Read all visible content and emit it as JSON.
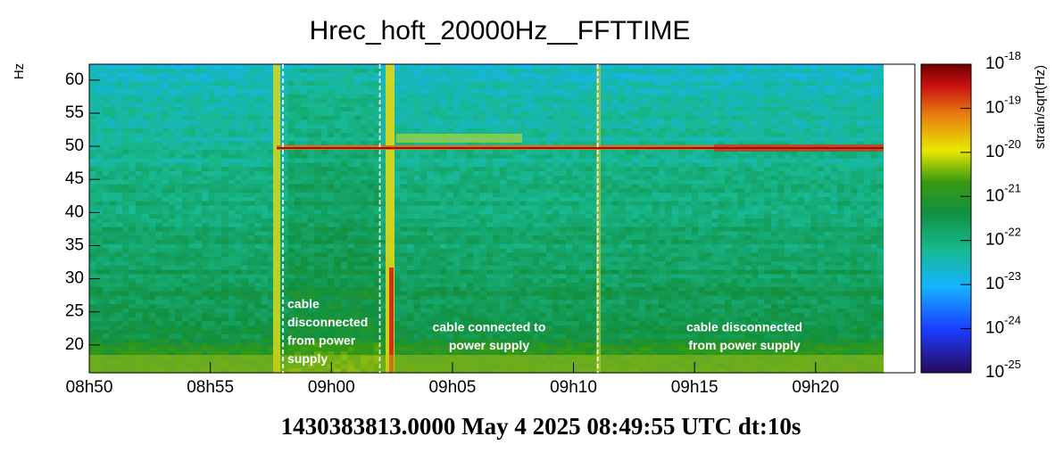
{
  "chart_data": {
    "type": "spectrogram",
    "title": "Hrec_hoft_20000Hz__FFTTIME",
    "subtitle": "1430383813.0000 May 4 2025 08:49:55 UTC dt:10s",
    "y_label": "Hz",
    "colorbar_label": "strain/sqrt(Hz)",
    "xlim": [
      530,
      564.1
    ],
    "ylim": [
      15.8,
      62.4
    ],
    "xticks": [
      {
        "value": 530,
        "label": "08h50"
      },
      {
        "value": 535,
        "label": "08h55"
      },
      {
        "value": 540,
        "label": "09h00"
      },
      {
        "value": 545,
        "label": "09h05"
      },
      {
        "value": 550,
        "label": "09h10"
      },
      {
        "value": 555,
        "label": "09h15"
      },
      {
        "value": 560,
        "label": "09h20"
      }
    ],
    "yticks": [
      20,
      25,
      30,
      35,
      40,
      45,
      50,
      55,
      60
    ],
    "colorbar_log": true,
    "colorbar_lim": [
      1e-25,
      1e-18
    ],
    "colorbar_ticks": [
      {
        "value": 1e-18,
        "label": "10",
        "exponent": "-18"
      },
      {
        "value": 1e-19,
        "label": "10",
        "exponent": "-19"
      },
      {
        "value": 1e-20,
        "label": "10",
        "exponent": "-20"
      },
      {
        "value": 1e-21,
        "label": "10",
        "exponent": "-21"
      },
      {
        "value": 1e-22,
        "label": "10",
        "exponent": "-22"
      },
      {
        "value": 1e-23,
        "label": "10",
        "exponent": "-23"
      },
      {
        "value": 1e-24,
        "label": "10",
        "exponent": "-24"
      },
      {
        "value": 1e-25,
        "label": "10",
        "exponent": "-25"
      }
    ],
    "markers": [
      538.0,
      542.0,
      551.0
    ],
    "annotations": [
      {
        "lines": [
          "cable",
          "disconnected",
          "from power",
          "supply"
        ]
      },
      {
        "lines": [
          "cable connected to",
          "power supply"
        ]
      },
      {
        "lines": [
          "cable disconnected",
          "from power supply"
        ]
      }
    ]
  }
}
